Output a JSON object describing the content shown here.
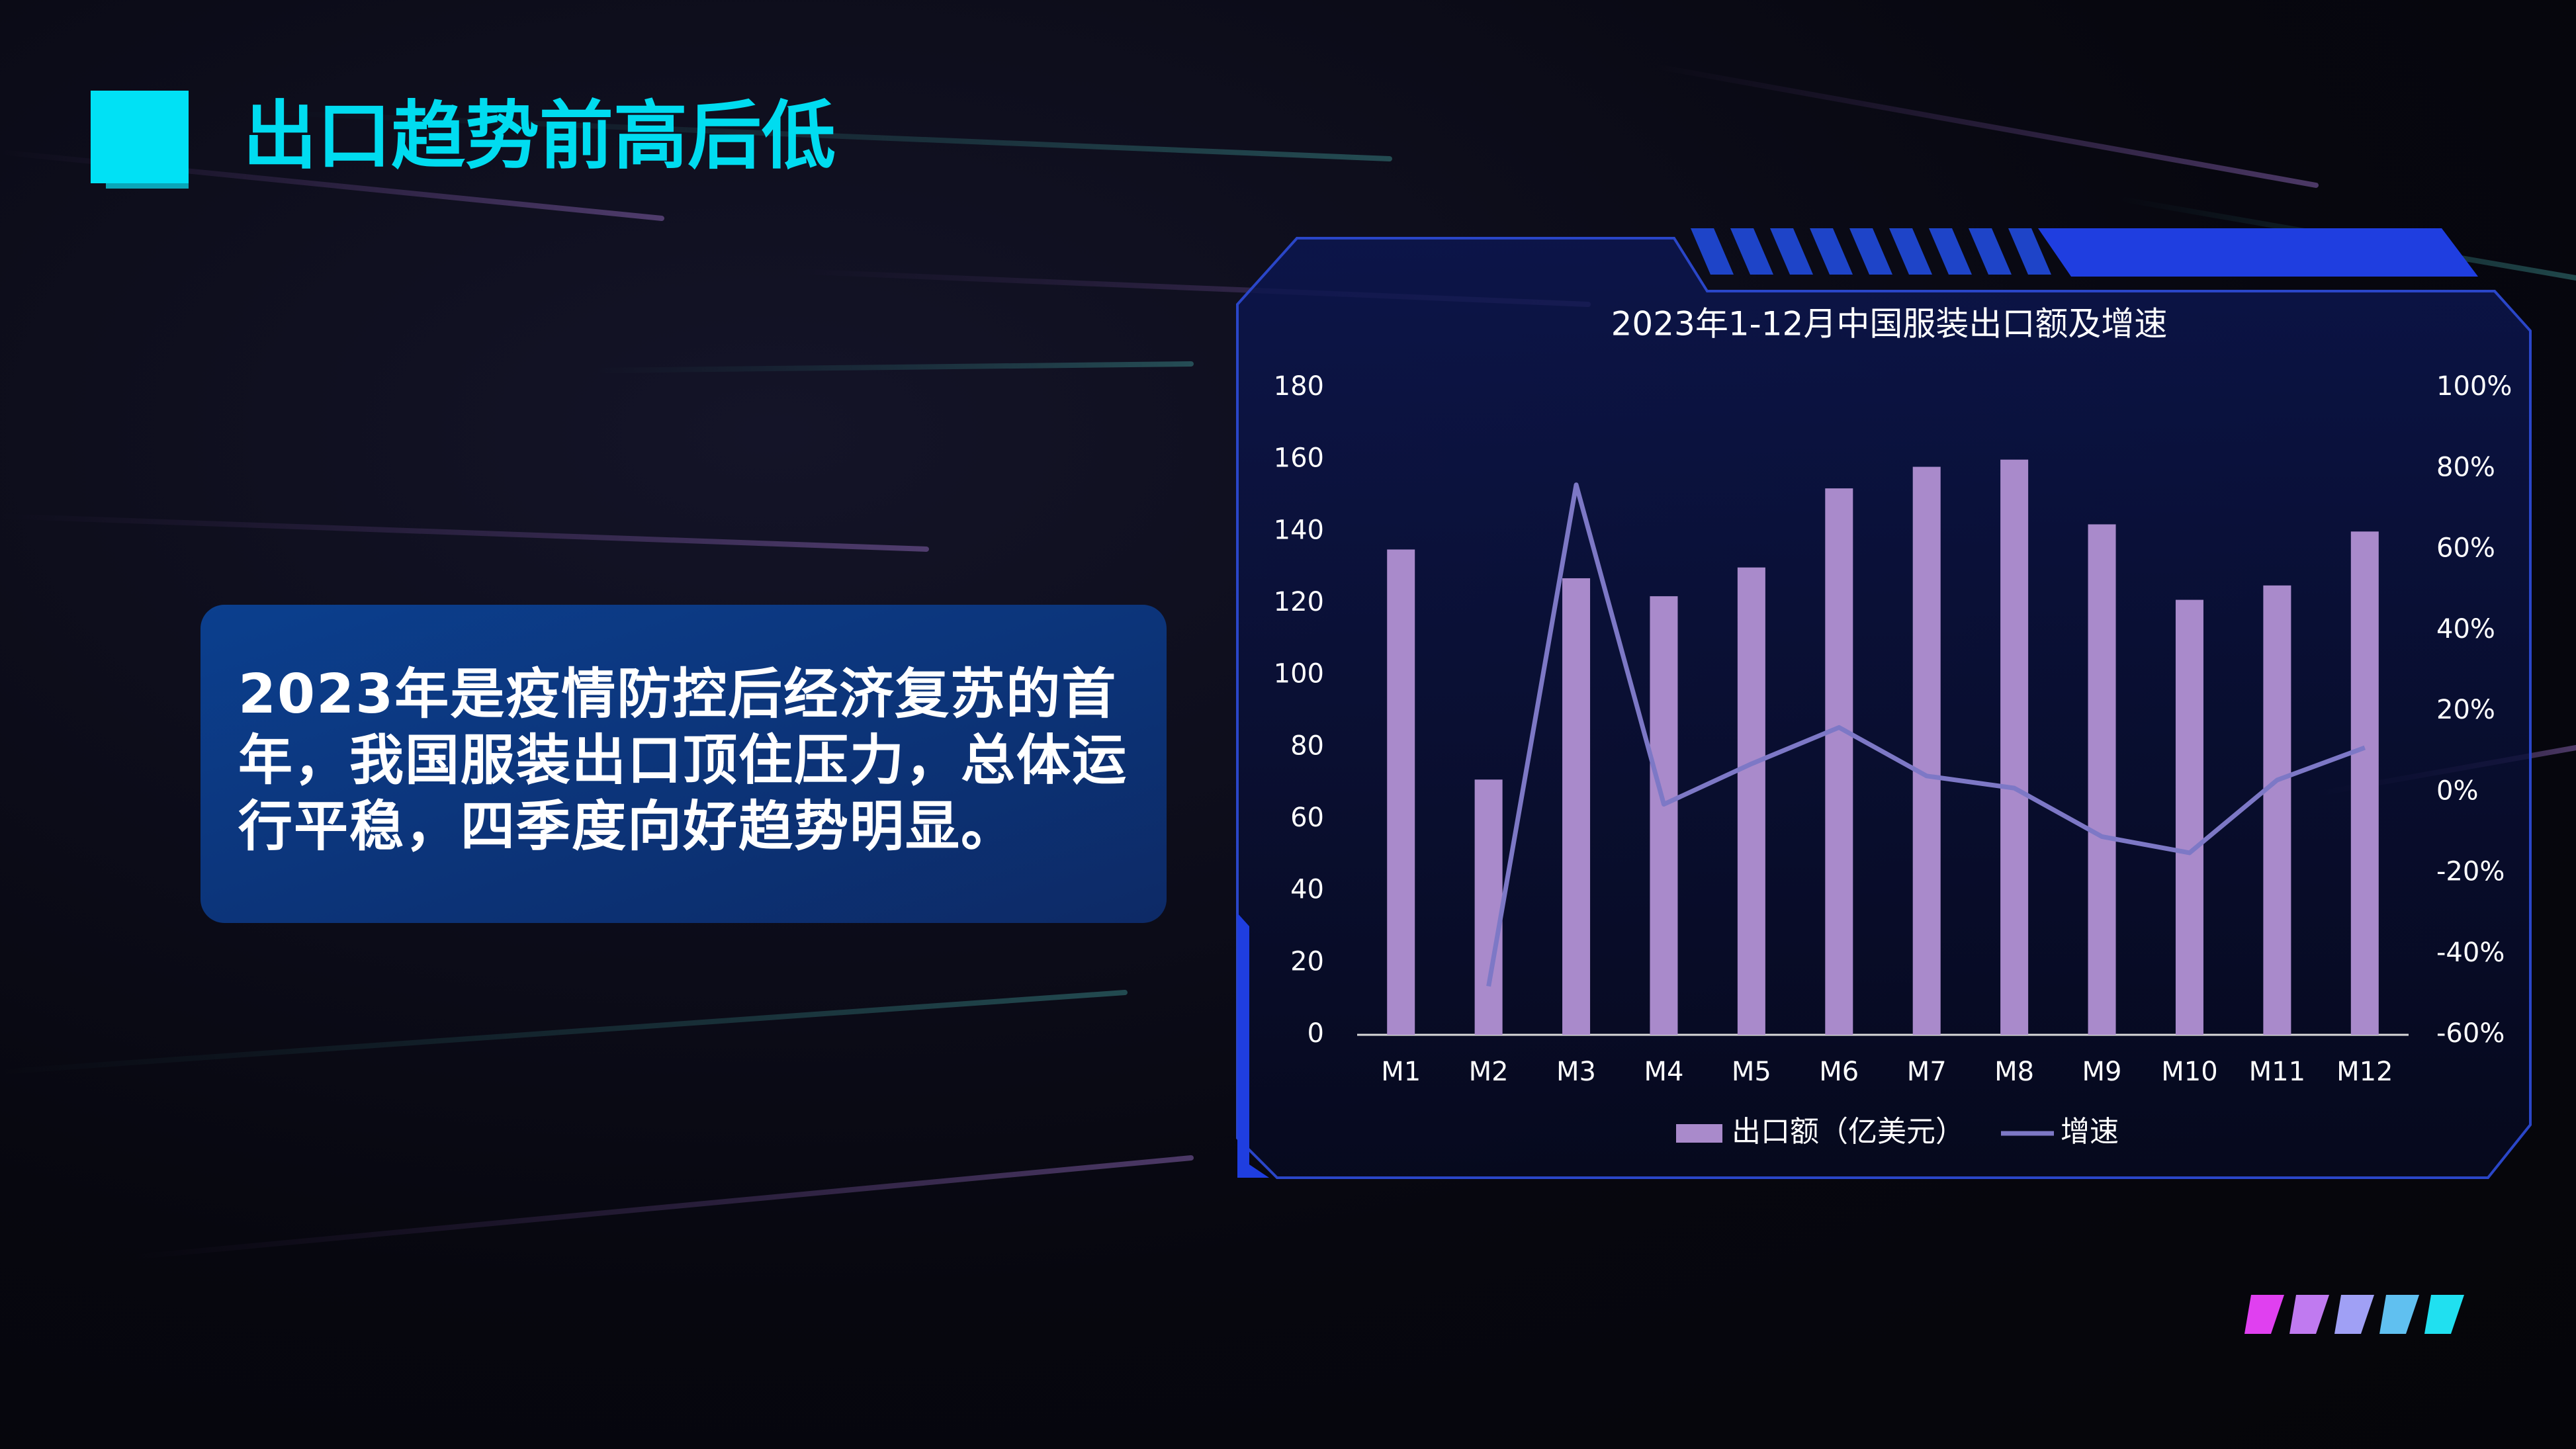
{
  "header": {
    "title": "出口趋势前高后低"
  },
  "body": {
    "text": "2023年是疫情防控后经济复苏的首年，我国服装出口顶住压力，总体运行平稳，四季度向好趋势明显。"
  },
  "chart_data": {
    "type": "bar",
    "title": "2023年1-12月中国服装出口额及增速",
    "categories": [
      "M1",
      "M2",
      "M3",
      "M4",
      "M5",
      "M6",
      "M7",
      "M8",
      "M9",
      "M10",
      "M11",
      "M12"
    ],
    "series": [
      {
        "name": "出口额（亿美元）",
        "type": "bar",
        "color": "#a98acb",
        "values": [
          135,
          71,
          127,
          122,
          130,
          152,
          158,
          160,
          142,
          121,
          125,
          140
        ]
      },
      {
        "name": "增速",
        "type": "line",
        "axis": "y2",
        "color": "#7d78c6",
        "values": [
          null,
          -48,
          76,
          -3,
          7,
          16,
          4,
          1,
          -11,
          -15,
          3,
          11
        ]
      }
    ],
    "ylim": [
      0,
      180
    ],
    "yticks": [
      0,
      20,
      40,
      60,
      80,
      100,
      120,
      140,
      160,
      180
    ],
    "y2lim": [
      -60,
      100
    ],
    "y2ticks": [
      {
        "value": -60,
        "label": "-60%"
      },
      {
        "value": -40,
        "label": "-40%"
      },
      {
        "value": -20,
        "label": "-20%"
      },
      {
        "value": 0,
        "label": "0%"
      },
      {
        "value": 20,
        "label": "20%"
      },
      {
        "value": 40,
        "label": "40%"
      },
      {
        "value": 60,
        "label": "60%"
      },
      {
        "value": 80,
        "label": "80%"
      },
      {
        "value": 100,
        "label": "100%"
      }
    ],
    "grid": false,
    "legend": "bottom"
  }
}
